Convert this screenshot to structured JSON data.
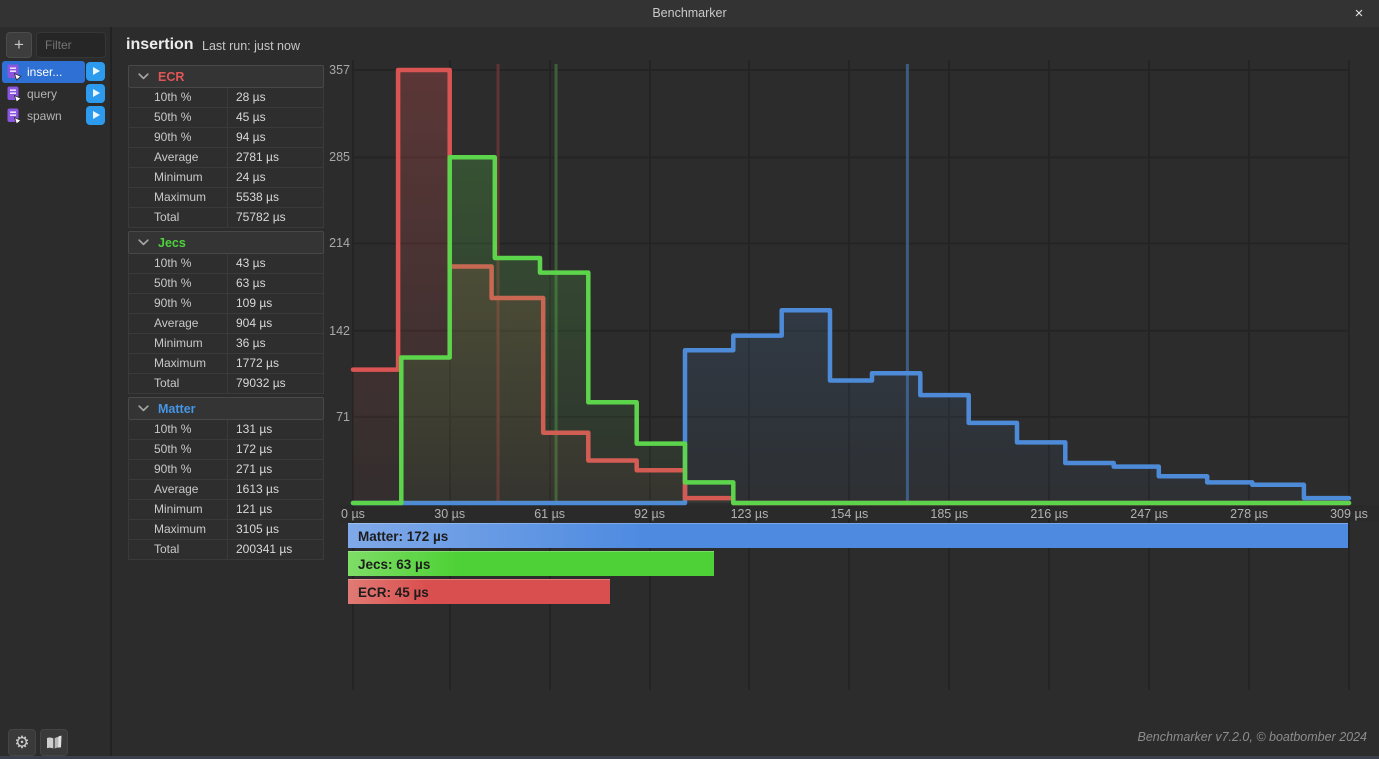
{
  "titlebar": {
    "title": "Benchmarker",
    "close_icon": "×"
  },
  "sidebar": {
    "add_label": "+",
    "filter_placeholder": "Filter",
    "items": [
      {
        "label": "inser...",
        "selected": true
      },
      {
        "label": "query",
        "selected": false
      },
      {
        "label": "spawn",
        "selected": false
      }
    ]
  },
  "header": {
    "title": "insertion",
    "last_run": "Last run: just now"
  },
  "stats": {
    "row_labels": [
      "10th %",
      "50th %",
      "90th %",
      "Average",
      "Minimum",
      "Maximum",
      "Total"
    ],
    "groups": [
      {
        "name": "ECR",
        "color": "#e05555",
        "values": [
          "28 µs",
          "45 µs",
          "94 µs",
          "2781 µs",
          "24 µs",
          "5538 µs",
          "75782 µs"
        ]
      },
      {
        "name": "Jecs",
        "color": "#4fd13d",
        "values": [
          "43 µs",
          "63 µs",
          "109 µs",
          "904 µs",
          "36 µs",
          "1772 µs",
          "79032 µs"
        ]
      },
      {
        "name": "Matter",
        "color": "#4596e6",
        "values": [
          "131 µs",
          "172 µs",
          "271 µs",
          "1613 µs",
          "121 µs",
          "3105 µs",
          "200341 µs"
        ]
      }
    ]
  },
  "chart_data": {
    "type": "step-histogram",
    "xlim": [
      0,
      309
    ],
    "ylim": [
      0,
      357
    ],
    "x_ticks": [
      {
        "label": "0 µs",
        "value": 0
      },
      {
        "label": "30 µs",
        "value": 30
      },
      {
        "label": "61 µs",
        "value": 61
      },
      {
        "label": "92 µs",
        "value": 92
      },
      {
        "label": "123 µs",
        "value": 123
      },
      {
        "label": "154 µs",
        "value": 154
      },
      {
        "label": "185 µs",
        "value": 185
      },
      {
        "label": "216 µs",
        "value": 216
      },
      {
        "label": "247 µs",
        "value": 247
      },
      {
        "label": "278 µs",
        "value": 278
      },
      {
        "label": "309 µs",
        "value": 309
      }
    ],
    "y_ticks": [
      71,
      142,
      214,
      285,
      357
    ],
    "series": [
      {
        "name": "Matter",
        "color": "#4d8bd8",
        "median_us": 172,
        "median_line_color": "#3c5a82",
        "steps": [
          [
            0,
            0
          ],
          [
            103,
            126
          ],
          [
            118,
            138
          ],
          [
            133,
            159
          ],
          [
            148,
            101
          ],
          [
            161,
            107
          ],
          [
            176,
            89
          ],
          [
            191,
            66
          ],
          [
            206,
            50
          ],
          [
            221,
            33
          ],
          [
            236,
            30
          ],
          [
            250,
            22
          ],
          [
            265,
            17
          ],
          [
            279,
            15
          ],
          [
            295,
            4
          ]
        ]
      },
      {
        "name": "ECR",
        "color": "#db5454",
        "median_us": 45,
        "median_line_color": "#5f3334",
        "steps": [
          [
            0,
            110
          ],
          [
            14,
            357
          ],
          [
            30,
            195
          ],
          [
            43,
            169
          ],
          [
            59,
            58
          ],
          [
            73,
            35
          ],
          [
            88,
            27
          ],
          [
            103,
            4
          ],
          [
            118,
            0
          ]
        ]
      },
      {
        "name": "Jecs",
        "color": "#5cd44b",
        "median_us": 63,
        "median_line_color": "#3c5f38",
        "steps": [
          [
            0,
            0
          ],
          [
            15,
            120
          ],
          [
            30,
            285
          ],
          [
            44,
            202
          ],
          [
            58,
            190
          ],
          [
            73,
            83
          ],
          [
            88,
            49
          ],
          [
            103,
            17
          ],
          [
            118,
            0
          ]
        ]
      }
    ],
    "legend": [
      {
        "label": "Matter: 172 µs",
        "value_us": 172,
        "color": "#4d8ae0",
        "light": "#7fa9e8"
      },
      {
        "label": "Jecs: 63 µs",
        "value_us": 63,
        "color": "#4ed136",
        "light": "#7edd66"
      },
      {
        "label": "ECR: 45 µs",
        "value_us": 45,
        "color": "#d94f4f",
        "light": "#e17a74"
      }
    ]
  },
  "bottom_toolbar": {
    "gear_icon": "⚙",
    "book_icon": "open-book"
  },
  "footer": {
    "credits": "Benchmarker v7.2.0, © boatbomber 2024"
  }
}
